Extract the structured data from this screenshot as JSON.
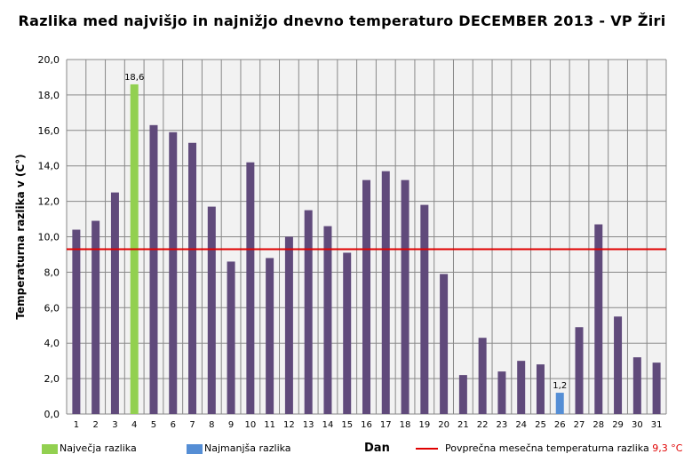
{
  "chart_data": {
    "type": "bar",
    "title": "Razlika med najvišjo in najnižjo dnevno temperaturo DECEMBER 2013 - VP Žiri",
    "xlabel": "Dan",
    "ylabel": "Temperaturna razlika v (C°)",
    "ylim": [
      0,
      20
    ],
    "yticks": [
      "0,0",
      "2,0",
      "4,0",
      "6,0",
      "8,0",
      "10,0",
      "12,0",
      "14,0",
      "16,0",
      "18,0",
      "20,0"
    ],
    "categories": [
      "1",
      "2",
      "3",
      "4",
      "5",
      "6",
      "7",
      "8",
      "9",
      "10",
      "11",
      "12",
      "13",
      "14",
      "15",
      "16",
      "17",
      "18",
      "19",
      "20",
      "21",
      "22",
      "23",
      "24",
      "25",
      "26",
      "27",
      "28",
      "29",
      "30",
      "31"
    ],
    "values": [
      10.4,
      10.9,
      12.5,
      18.6,
      16.3,
      15.9,
      15.3,
      11.7,
      8.6,
      14.2,
      8.8,
      10.0,
      11.5,
      10.6,
      9.1,
      13.2,
      13.7,
      13.2,
      11.8,
      7.9,
      2.2,
      4.3,
      2.4,
      3.0,
      2.8,
      1.2,
      4.9,
      10.7,
      5.5,
      3.2,
      2.9
    ],
    "max_index": 3,
    "min_index": 25,
    "max_label": "18,6",
    "min_label": "1,2",
    "average": 9.3,
    "grid": true,
    "legend": {
      "position": "bottom",
      "max_label": "Največja razlika",
      "min_label": "Najmanjša razlika",
      "avg_label": "Povprečna mesečna temperaturna razlika",
      "avg_value": "9,3 °C"
    },
    "colors": {
      "bar": "#604a7b",
      "max": "#92d050",
      "min": "#558ed5",
      "avg": "#e00000",
      "plot_bg": "#f2f2f2",
      "grid": "#888888"
    }
  }
}
